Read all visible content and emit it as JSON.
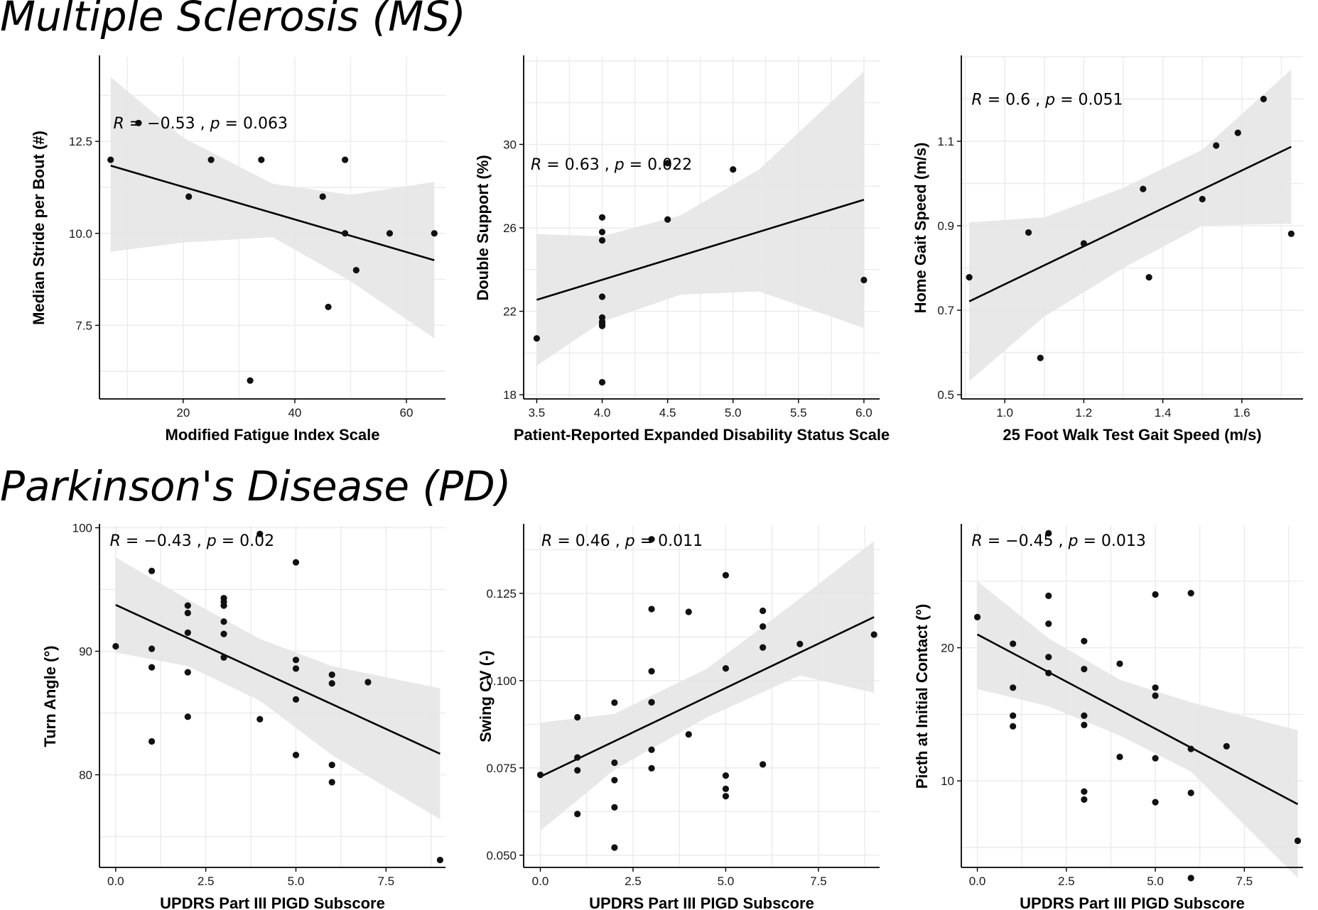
{
  "sections": [
    {
      "title": "Multiple Sclerosis (MS)"
    },
    {
      "title": "Parkinson's Disease (PD)"
    }
  ],
  "colors": {
    "point": "#111111",
    "line": "#000000",
    "band": "#e6e6e6",
    "grid": "#ebebeb",
    "axis": "#000000"
  },
  "chart_data": [
    {
      "type": "scatter",
      "panel": "ms-fatigue",
      "xlabel": "Modified Fatigue Index Scale",
      "ylabel": "Median Stride per Bout (#)",
      "xlim": [
        5,
        67
      ],
      "ylim": [
        5.5,
        14.8
      ],
      "xticks": [
        20,
        40,
        60
      ],
      "yticks": [
        7.5,
        10.0,
        12.5
      ],
      "xtick_labels": [
        "20",
        "40",
        "60"
      ],
      "ytick_labels": [
        "7.5",
        "10.0",
        "12.5"
      ],
      "stat": {
        "R": "−0.53",
        "p": "0.063"
      },
      "x": [
        7,
        12,
        21,
        25,
        32,
        34,
        45,
        46,
        49,
        49,
        51,
        57,
        65
      ],
      "y": [
        12,
        13,
        11,
        12,
        6,
        12,
        11,
        8,
        12,
        10,
        9,
        10,
        10
      ],
      "fit": {
        "x0": 7,
        "y0": 11.84,
        "x1": 65,
        "y1": 9.27
      },
      "band": {
        "x": [
          7,
          20,
          36,
          50,
          65
        ],
        "upper": [
          14.25,
          12.6,
          11.35,
          11.05,
          11.4
        ],
        "lower": [
          9.5,
          9.75,
          9.9,
          8.7,
          7.15
        ]
      }
    },
    {
      "type": "scatter",
      "panel": "ms-disability",
      "xlabel": "Patient-Reported Expanded Disability Status Scale",
      "ylabel": "Double Support (%)",
      "xlim": [
        3.4,
        6.12
      ],
      "ylim": [
        17.8,
        34.2
      ],
      "xticks": [
        3.5,
        4.0,
        4.5,
        5.0,
        5.5,
        6.0
      ],
      "yticks": [
        18,
        22,
        26,
        30
      ],
      "xtick_labels": [
        "3.5",
        "4.0",
        "4.5",
        "5.0",
        "5.5",
        "6.0"
      ],
      "ytick_labels": [
        "18",
        "22",
        "26",
        "30"
      ],
      "stat": {
        "R": "0.63",
        "p": "0.022"
      },
      "x": [
        3.5,
        4.0,
        4.0,
        4.0,
        4.0,
        4.0,
        4.0,
        4.0,
        4.0,
        4.0,
        4.5,
        4.5,
        5.0,
        6.0
      ],
      "y": [
        20.7,
        26.5,
        25.8,
        25.4,
        22.7,
        21.7,
        21.4,
        21.3,
        18.6,
        21.5,
        29.1,
        26.4,
        28.8,
        23.5
      ],
      "fit": {
        "x0": 3.5,
        "y0": 22.55,
        "x1": 6.0,
        "y1": 27.35
      },
      "band": {
        "x": [
          3.5,
          4.0,
          4.6,
          5.2,
          6.0
        ],
        "upper": [
          25.7,
          25.6,
          26.6,
          28.8,
          33.5
        ],
        "lower": [
          19.4,
          21.5,
          22.8,
          22.95,
          21.2
        ]
      }
    },
    {
      "type": "scatter",
      "panel": "ms-gait-speed",
      "xlabel": "25 Foot Walk Test Gait Speed (m/s)",
      "ylabel": "Home Gait Speed (m/s)",
      "xlim": [
        0.89,
        1.755
      ],
      "ylim": [
        0.49,
        1.3
      ],
      "xticks": [
        1.0,
        1.2,
        1.4,
        1.6
      ],
      "yticks": [
        0.5,
        0.7,
        0.9,
        1.1
      ],
      "xtick_labels": [
        "1.0",
        "1.2",
        "1.4",
        "1.6"
      ],
      "ytick_labels": [
        "0.5",
        "0.7",
        "0.9",
        "1.1"
      ],
      "stat": {
        "R": "0.6",
        "p": "0.051"
      },
      "x": [
        0.91,
        1.06,
        1.09,
        1.2,
        1.35,
        1.365,
        1.5,
        1.535,
        1.59,
        1.655,
        1.725
      ],
      "y": [
        0.778,
        0.884,
        0.587,
        0.858,
        0.987,
        0.778,
        0.963,
        1.09,
        1.12,
        1.2,
        0.881
      ],
      "fit": {
        "x0": 0.91,
        "y0": 0.721,
        "x1": 1.725,
        "y1": 1.087
      },
      "band": {
        "x": [
          0.91,
          1.1,
          1.3,
          1.5,
          1.725
        ],
        "upper": [
          0.908,
          0.92,
          0.99,
          1.08,
          1.27
        ],
        "lower": [
          0.532,
          0.685,
          0.8,
          0.9,
          0.905
        ]
      }
    },
    {
      "type": "scatter",
      "panel": "pd-turn-angle",
      "xlabel": "UPDRS Part III PIGD Subscore",
      "ylabel": "Turn Angle (°)",
      "xlim": [
        -0.45,
        9.15
      ],
      "ylim": [
        72.5,
        100.2
      ],
      "xticks": [
        0.0,
        2.5,
        5.0,
        7.5
      ],
      "yticks": [
        80,
        90,
        100
      ],
      "xtick_labels": [
        "0.0",
        "2.5",
        "5.0",
        "7.5"
      ],
      "ytick_labels": [
        "80",
        "90",
        "100"
      ],
      "stat": {
        "R": "−0.43",
        "p": "0.02"
      },
      "x": [
        0,
        1,
        1,
        1,
        1,
        2,
        2,
        2,
        2,
        2,
        3,
        3,
        3,
        3,
        3,
        3,
        4,
        4,
        5,
        5,
        5,
        5,
        5,
        6,
        6,
        6,
        6,
        7,
        9
      ],
      "y": [
        90.4,
        96.5,
        90.2,
        88.7,
        82.7,
        93.7,
        93.1,
        91.5,
        88.3,
        84.7,
        94.3,
        94.0,
        93.7,
        92.4,
        91.4,
        89.5,
        99.5,
        84.5,
        97.2,
        89.3,
        88.6,
        86.1,
        81.6,
        88.1,
        87.4,
        80.8,
        79.4,
        87.5,
        73.1
      ],
      "fit": {
        "x0": 0,
        "y0": 93.75,
        "x1": 9,
        "y1": 81.7
      },
      "band": {
        "x": [
          0,
          2,
          4,
          6,
          9
        ],
        "upper": [
          97.6,
          94.2,
          91.0,
          88.8,
          87.0
        ],
        "lower": [
          89.9,
          88.8,
          86.0,
          81.6,
          76.4
        ]
      }
    },
    {
      "type": "scatter",
      "panel": "pd-swing-cv",
      "xlabel": "UPDRS Part III PIGD Subscore",
      "ylabel": "Swing CV (-)",
      "xlim": [
        -0.45,
        9.15
      ],
      "ylim": [
        0.0465,
        0.1445
      ],
      "xticks": [
        0.0,
        2.5,
        5.0,
        7.5
      ],
      "yticks": [
        0.05,
        0.075,
        0.1,
        0.125
      ],
      "xtick_labels": [
        "0.0",
        "2.5",
        "5.0",
        "7.5"
      ],
      "ytick_labels": [
        "0.050",
        "0.075",
        "0.100",
        "0.125"
      ],
      "stat": {
        "R": "0.46",
        "p": "0.011"
      },
      "x": [
        0,
        1,
        1,
        1,
        1,
        2,
        2,
        2,
        2,
        2,
        3,
        3,
        3,
        3,
        3,
        3,
        3,
        4,
        4,
        5,
        5,
        5,
        5,
        5,
        6,
        6,
        6,
        6,
        7,
        9
      ],
      "y": [
        0.073,
        0.0895,
        0.078,
        0.0743,
        0.0618,
        0.0937,
        0.0765,
        0.0715,
        0.0637,
        0.0522,
        0.1405,
        0.1205,
        0.1027,
        0.0938,
        0.0802,
        0.0749,
        0.0938,
        0.1197,
        0.0846,
        0.1302,
        0.1035,
        0.0728,
        0.069,
        0.0669,
        0.12,
        0.1155,
        0.1095,
        0.076,
        0.1105,
        0.1132
      ],
      "fit": {
        "x0": 0,
        "y0": 0.0725,
        "x1": 9,
        "y1": 0.1182
      },
      "band": {
        "x": [
          0,
          2,
          4.5,
          7,
          9
        ],
        "upper": [
          0.088,
          0.0905,
          0.1035,
          0.1235,
          0.14
        ],
        "lower": [
          0.057,
          0.0745,
          0.0895,
          0.1015,
          0.0965
        ]
      }
    },
    {
      "type": "scatter",
      "panel": "pd-pitch",
      "xlabel": "UPDRS Part III PIGD Subscore",
      "ylabel": "Picth at Initial Contact (°)",
      "xlim": [
        -0.45,
        9.15
      ],
      "ylim": [
        3.5,
        29.2
      ],
      "xticks": [
        0.0,
        2.5,
        5.0,
        7.5
      ],
      "yticks": [
        10,
        20
      ],
      "xtick_labels": [
        "0.0",
        "2.5",
        "5.0",
        "7.5"
      ],
      "ytick_labels": [
        "10",
        "20"
      ],
      "stat": {
        "R": "−0.45",
        "p": "0.013"
      },
      "x": [
        0,
        1,
        1,
        1,
        1,
        2,
        2,
        2,
        2,
        2,
        3,
        3,
        3,
        3,
        3,
        3,
        4,
        4,
        5,
        5,
        5,
        5,
        5,
        6,
        6,
        6,
        6,
        7,
        9
      ],
      "y": [
        22.3,
        20.3,
        17.0,
        14.9,
        14.1,
        28.6,
        23.9,
        21.8,
        19.3,
        18.1,
        20.5,
        18.4,
        14.9,
        14.2,
        9.2,
        8.6,
        18.8,
        11.8,
        24.0,
        17.0,
        16.4,
        11.7,
        8.4,
        24.1,
        12.4,
        9.1,
        2.7,
        12.6,
        5.5
      ],
      "fit": {
        "x0": 0,
        "y0": 21.0,
        "x1": 9,
        "y1": 8.25
      },
      "band": {
        "x": [
          0,
          2,
          4,
          6,
          9
        ],
        "upper": [
          25.0,
          20.7,
          17.6,
          15.9,
          13.8
        ],
        "lower": [
          16.9,
          15.6,
          13.4,
          10.7,
          2.7
        ]
      }
    }
  ]
}
